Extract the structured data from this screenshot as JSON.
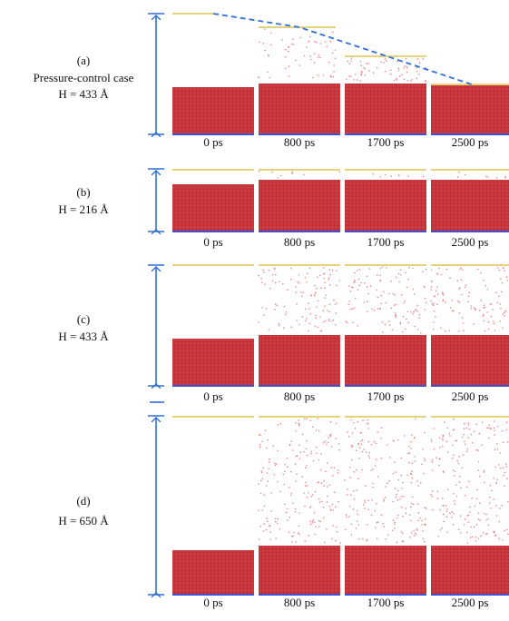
{
  "panels": [
    {
      "label": "(a)",
      "case": "Pressure-control case",
      "height": "H = 433 Å",
      "times": [
        "0 ps",
        "800 ps",
        "1700 ps",
        "2500 ps"
      ]
    },
    {
      "label": "(b)",
      "height": "H = 216 Å",
      "times": [
        "0 ps",
        "800 ps",
        "1700 ps",
        "2500 ps"
      ]
    },
    {
      "label": "(c)",
      "height": "H = 433 Å",
      "times": [
        "0 ps",
        "800 ps",
        "1700 ps",
        "2500 ps"
      ]
    },
    {
      "label": "(d)",
      "height": "H = 650 Å",
      "times": [
        "0 ps",
        "800 ps",
        "1700 ps",
        "2500 ps"
      ]
    }
  ]
}
